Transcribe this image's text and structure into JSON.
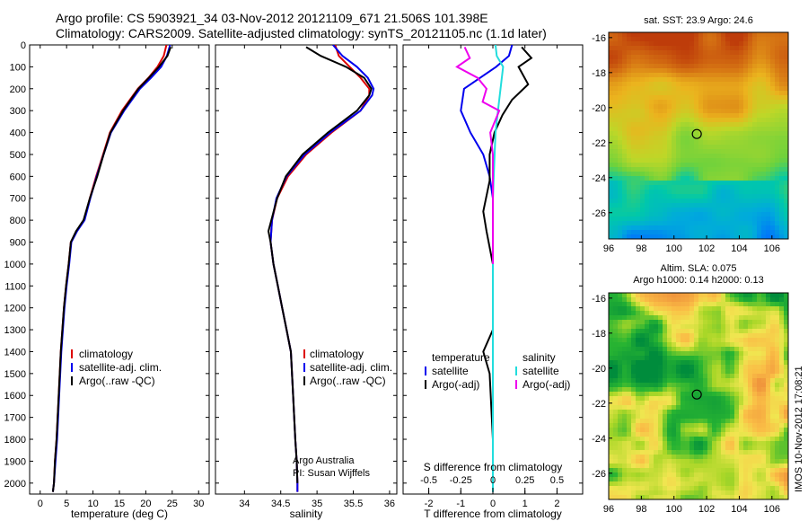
{
  "header": {
    "line1": "Argo profile: CS 5903921_34 03-Nov-2012 20121109_671 21.506S 101.398E",
    "line2": "Climatology: CARS2009. Satellite-adjusted climatology: synTS_20121105.nc (1.1d later)"
  },
  "timestamp": "IMOS 10-Nov-2012 17:08:21",
  "chart_data": [
    {
      "type": "line",
      "id": "temperature",
      "xlabel": "temperature (deg C)",
      "xlim": [
        -2,
        32
      ],
      "xticks": [
        0,
        5,
        10,
        15,
        20,
        25,
        30
      ],
      "ylim": [
        0,
        2050
      ],
      "yticks": [
        0,
        100,
        200,
        300,
        400,
        500,
        600,
        700,
        800,
        900,
        1000,
        1100,
        1200,
        1300,
        1400,
        1500,
        1600,
        1700,
        1800,
        1900,
        2000
      ],
      "legend": [
        "climatology",
        "satellite-adj. clim.",
        "Argo(..raw -QC)"
      ],
      "series": [
        {
          "name": "climatology",
          "color": "#dd0000",
          "x": [
            23.9,
            23.4,
            22.2,
            20.5,
            18.5,
            15.5,
            13.2,
            11.9,
            10.6,
            9.4,
            8.3,
            6.9,
            5.8,
            5.4,
            4.9,
            4.5,
            3.9,
            3.5,
            3.1,
            2.8,
            2.6,
            2.4
          ],
          "y": [
            0,
            50,
            100,
            150,
            200,
            300,
            400,
            500,
            600,
            700,
            800,
            850,
            900,
            1000,
            1100,
            1200,
            1400,
            1600,
            1800,
            1900,
            2000,
            2040
          ]
        },
        {
          "name": "satellite-adj. clim.",
          "color": "#0000ee",
          "x": [
            24.6,
            24.0,
            22.9,
            21.0,
            18.9,
            15.9,
            13.4,
            12.0,
            10.7,
            9.5,
            8.4,
            7.0,
            5.9,
            5.5,
            5.0,
            4.6,
            4.0,
            3.6,
            3.2,
            2.9,
            2.6,
            2.4
          ],
          "y": [
            0,
            50,
            100,
            150,
            200,
            300,
            400,
            500,
            600,
            700,
            800,
            850,
            900,
            1000,
            1100,
            1200,
            1400,
            1600,
            1800,
            1900,
            2000,
            2040
          ]
        },
        {
          "name": "Argo(..raw -QC)",
          "color": "#000000",
          "x": [
            24.7,
            24.1,
            22.5,
            20.6,
            18.6,
            15.7,
            13.3,
            12.0,
            10.8,
            9.4,
            8.2,
            6.8,
            5.8,
            5.4,
            4.9,
            4.5,
            3.9,
            3.5,
            3.1,
            2.8,
            2.6,
            2.4
          ],
          "y": [
            10,
            50,
            100,
            150,
            200,
            300,
            400,
            500,
            600,
            700,
            800,
            850,
            900,
            1000,
            1100,
            1200,
            1400,
            1600,
            1800,
            1900,
            2000,
            2040
          ]
        }
      ]
    },
    {
      "type": "line",
      "id": "salinity",
      "xlabel": "salinity",
      "xlim": [
        33.6,
        36.1
      ],
      "xticks": [
        34,
        34.5,
        35,
        35.5,
        36
      ],
      "ylim": [
        0,
        2050
      ],
      "legend": [
        "climatology",
        "satellite-adj. clim.",
        "Argo(..raw -QC)"
      ],
      "annotation": [
        "Argo Australia",
        "PI: Susan Wijffels"
      ],
      "series": [
        {
          "name": "climatology",
          "color": "#dd0000",
          "x": [
            35.25,
            35.3,
            35.45,
            35.6,
            35.72,
            35.72,
            35.6,
            35.2,
            34.85,
            34.6,
            34.45,
            34.38,
            34.36,
            34.4,
            34.46,
            34.52,
            34.58,
            34.64,
            34.67,
            34.7,
            34.72,
            34.73,
            34.73
          ],
          "y": [
            0,
            50,
            100,
            150,
            200,
            230,
            300,
            400,
            500,
            600,
            700,
            800,
            900,
            1000,
            1100,
            1200,
            1300,
            1400,
            1600,
            1800,
            1900,
            2000,
            2040
          ]
        },
        {
          "name": "satellite-adj. clim.",
          "color": "#0000ee",
          "x": [
            35.22,
            35.35,
            35.55,
            35.7,
            35.78,
            35.76,
            35.6,
            35.18,
            34.83,
            34.58,
            34.44,
            34.38,
            34.36,
            34.4,
            34.46,
            34.52,
            34.58,
            34.64,
            34.67,
            34.7,
            34.72,
            34.73,
            34.73
          ],
          "y": [
            0,
            50,
            100,
            150,
            200,
            230,
            300,
            400,
            500,
            600,
            700,
            800,
            900,
            1000,
            1100,
            1200,
            1300,
            1400,
            1600,
            1800,
            1900,
            2000,
            2040
          ]
        },
        {
          "name": "Argo(..raw -QC)",
          "color": "#000000",
          "x": [
            34.85,
            35.05,
            35.4,
            35.65,
            35.75,
            35.72,
            35.55,
            35.15,
            34.8,
            34.57,
            34.45,
            34.33,
            34.36,
            34.4,
            34.46,
            34.52,
            34.58,
            34.64,
            34.67,
            34.7,
            34.72,
            34.73
          ],
          "y": [
            10,
            50,
            100,
            150,
            200,
            230,
            300,
            400,
            500,
            600,
            700,
            850,
            900,
            1000,
            1100,
            1200,
            1300,
            1400,
            1600,
            1800,
            1900,
            2000
          ]
        }
      ]
    },
    {
      "type": "line",
      "id": "difference",
      "xlabel": "T difference from climatology",
      "xlabel_top": "S difference from climatology",
      "xlim": [
        -2.8,
        2.8
      ],
      "xticks": [
        -2,
        -1,
        0,
        1,
        2
      ],
      "s_ticks": [
        "-0.5",
        "-0.25",
        "0",
        "0.25",
        "0.5"
      ],
      "ylim": [
        0,
        2050
      ],
      "legend_temperature_title": "temperature",
      "legend_salinity_title": "salinity",
      "legend_temperature": [
        "satellite",
        "Argo(-adj)"
      ],
      "legend_salinity": [
        "satellite",
        "Argo(-adj)"
      ],
      "series": [
        {
          "name": "T satellite",
          "color": "#0000ee",
          "x": [
            0.6,
            0.5,
            0.1,
            -0.9,
            -1.0,
            -0.7,
            -0.3,
            -0.1,
            0.0,
            0.0,
            0.0,
            0.0,
            0.0,
            0.0
          ],
          "y": [
            0,
            50,
            100,
            200,
            300,
            400,
            500,
            600,
            700,
            800,
            1000,
            1400,
            1800,
            2040
          ]
        },
        {
          "name": "T Argo(-adj)",
          "color": "#000000",
          "x": [
            0.9,
            1.2,
            0.8,
            1.1,
            0.6,
            0.3,
            0.05,
            -0.1,
            -0.1,
            -0.3,
            -0.2,
            0.0,
            0.0,
            -0.3,
            -0.1,
            0.0,
            0.0
          ],
          "y": [
            10,
            60,
            100,
            180,
            250,
            320,
            400,
            500,
            620,
            760,
            850,
            1000,
            1300,
            1400,
            1500,
            1800,
            2040
          ]
        },
        {
          "name": "S satellite",
          "color": "#22dddd",
          "x": [
            0.02,
            0.03,
            0.08,
            0.05,
            0.02,
            0.0,
            0.0,
            0.0,
            0.0,
            0.0
          ],
          "y": [
            0,
            50,
            100,
            250,
            400,
            700,
            1000,
            1400,
            1800,
            2040
          ]
        },
        {
          "name": "S Argo(-adj)",
          "color": "#ee00ee",
          "x": [
            -0.22,
            -0.18,
            -0.28,
            -0.12,
            -0.05,
            -0.08,
            0.05,
            -0.02,
            0.0,
            0.0,
            0.0
          ],
          "y": [
            10,
            60,
            100,
            150,
            200,
            260,
            300,
            400,
            500,
            800,
            1000
          ]
        }
      ]
    },
    {
      "type": "heatmap",
      "id": "sst-map",
      "title": "sat. SST: 23.9 Argo: 24.6",
      "xticks": [
        "96",
        "98",
        "100",
        "102",
        "104",
        "106"
      ],
      "yticks": [
        "-16",
        "-18",
        "-20",
        "-22",
        "-24",
        "-26"
      ],
      "xlim": [
        96,
        107
      ],
      "ylim": [
        -27.5,
        -15.7
      ],
      "marker": {
        "lon": 101.398,
        "lat": -21.506
      }
    },
    {
      "type": "heatmap",
      "id": "sla-map",
      "title_line1": "Altim. SLA: 0.075",
      "title_line2": "Argo h1000: 0.14 h2000: 0.13",
      "xticks": [
        "96",
        "98",
        "100",
        "102",
        "104",
        "106"
      ],
      "yticks": [
        "-16",
        "-18",
        "-20",
        "-22",
        "-24",
        "-26"
      ],
      "xlim": [
        96,
        107
      ],
      "ylim": [
        -27.5,
        -15.7
      ],
      "marker": {
        "lon": 101.398,
        "lat": -21.506
      }
    }
  ]
}
